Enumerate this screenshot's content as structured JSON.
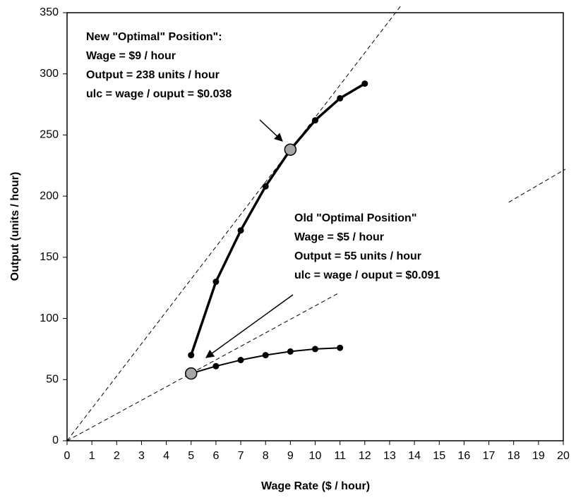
{
  "chart_data": {
    "type": "line",
    "xlabel": "Wage Rate ($ / hour)",
    "ylabel": "Output (units / hour)",
    "xlim": [
      0,
      20
    ],
    "xticks": [
      0,
      1,
      2,
      3,
      4,
      5,
      6,
      7,
      8,
      9,
      10,
      11,
      12,
      13,
      14,
      15,
      16,
      17,
      18,
      19,
      20
    ],
    "ylim": [
      0,
      350
    ],
    "yticks": [
      0,
      50,
      100,
      150,
      200,
      250,
      300,
      350
    ],
    "series": [
      {
        "color": "#000000",
        "width": 3.5,
        "x": [
          5,
          6,
          7,
          8,
          9,
          10,
          11,
          12
        ],
        "values": [
          70,
          130,
          172,
          208,
          238,
          262,
          280,
          292
        ]
      },
      {
        "color": "#000000",
        "width": 2,
        "x": [
          5,
          6,
          7,
          8,
          9,
          10,
          11
        ],
        "values": [
          55,
          61,
          66,
          70,
          73,
          75,
          76
        ]
      }
    ],
    "highlight": [
      {
        "series": 0,
        "index": 4
      },
      {
        "series": 1,
        "index": 0
      }
    ],
    "highlight_color": "#a6a6a6",
    "reference_lines": [
      {
        "x": [
          0,
          13.45
        ],
        "values": [
          0,
          355.6
        ]
      },
      {
        "x": [
          0,
          10.97
        ],
        "values": [
          0,
          121
        ]
      },
      {
        "x": [
          17.8,
          20.08
        ],
        "values": [
          195,
          222
        ]
      }
    ],
    "annotations": [
      [
        "New \"Optimal\" Position\":",
        "Wage = $9 / hour",
        "Output = 238 units / hour",
        "ulc = wage / ouput = $0.038"
      ],
      [
        "Old \"Optimal Position\"",
        "Wage = $5 / hour",
        "Output = 55 units / hour",
        "ulc = wage / ouput = $0.091"
      ]
    ]
  }
}
